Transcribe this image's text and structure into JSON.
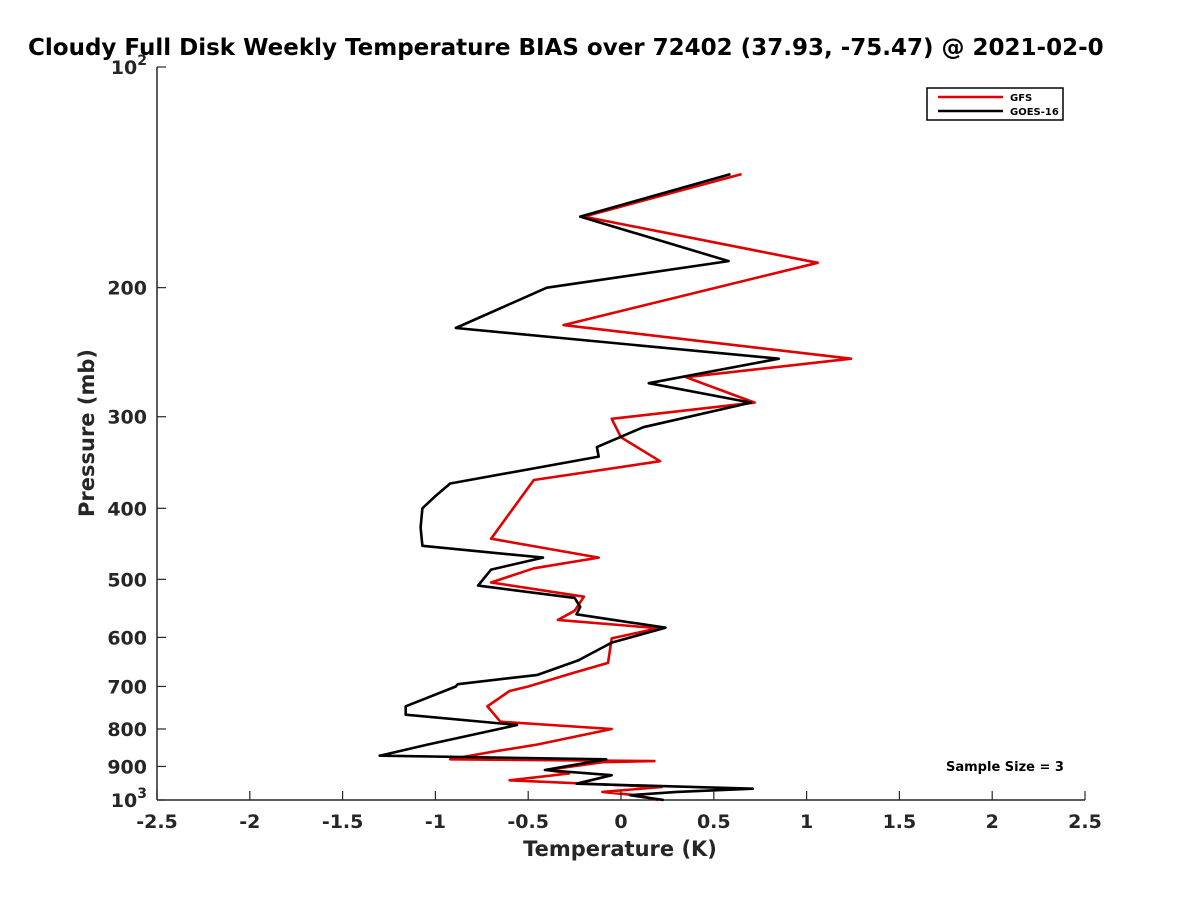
{
  "chart_data": {
    "type": "line",
    "title": "Cloudy Full Disk Weekly Temperature BIAS over 72402 (37.93, -75.47) @ 2021-02-0",
    "xlabel": "Temperature (K)",
    "ylabel": "Pressure (mb)",
    "xlim": [
      -2.5,
      2.5
    ],
    "ylim": [
      100,
      1000
    ],
    "y_scale": "log",
    "y_reversed": true,
    "grid": false,
    "legend_position": "top-right",
    "x_ticks": [
      -2.5,
      -2,
      -1.5,
      -1,
      -0.5,
      0,
      0.5,
      1,
      1.5,
      2,
      2.5
    ],
    "x_tick_labels": [
      "-2.5",
      "-2",
      "-1.5",
      "-1",
      "-0.5",
      "0",
      "0.5",
      "1",
      "1.5",
      "2",
      "2.5"
    ],
    "y_ticks": [
      100,
      200,
      300,
      400,
      500,
      600,
      700,
      800,
      900,
      1000
    ],
    "y_tick_labels": [
      {
        "base": "10",
        "exp": "2"
      },
      {
        "base": "200",
        "exp": ""
      },
      {
        "base": "300",
        "exp": ""
      },
      {
        "base": "400",
        "exp": ""
      },
      {
        "base": "500",
        "exp": ""
      },
      {
        "base": "600",
        "exp": ""
      },
      {
        "base": "700",
        "exp": ""
      },
      {
        "base": "800",
        "exp": ""
      },
      {
        "base": "900",
        "exp": ""
      },
      {
        "base": "10",
        "exp": "3"
      }
    ],
    "annotation": "Sample Size = 3",
    "series": [
      {
        "name": "GFS",
        "color": "#e00000",
        "points": [
          [
            0.65,
            140
          ],
          [
            -0.2,
            160
          ],
          [
            1.06,
            185
          ],
          [
            -0.31,
            225
          ],
          [
            1.24,
            250
          ],
          [
            0.35,
            265
          ],
          [
            0.72,
            287
          ],
          [
            -0.05,
            302
          ],
          [
            0.0,
            320
          ],
          [
            0.21,
            345
          ],
          [
            -0.47,
            366
          ],
          [
            -0.7,
            440
          ],
          [
            -0.12,
            467
          ],
          [
            -0.47,
            483
          ],
          [
            -0.7,
            505
          ],
          [
            -0.2,
            528
          ],
          [
            -0.25,
            552
          ],
          [
            -0.34,
            568
          ],
          [
            0.2,
            583
          ],
          [
            -0.05,
            602
          ],
          [
            -0.07,
            650
          ],
          [
            -0.25,
            670
          ],
          [
            -0.5,
            700
          ],
          [
            -0.6,
            710
          ],
          [
            -0.72,
            745
          ],
          [
            -0.65,
            782
          ],
          [
            -0.05,
            800
          ],
          [
            -0.45,
            840
          ],
          [
            -0.7,
            860
          ],
          [
            -0.92,
            880
          ],
          [
            0.18,
            885
          ],
          [
            -0.1,
            888
          ],
          [
            -0.4,
            910
          ],
          [
            -0.28,
            920
          ],
          [
            -0.6,
            940
          ],
          [
            0.22,
            960
          ],
          [
            -0.1,
            975
          ],
          [
            0.08,
            985
          ],
          [
            0.2,
            1000
          ]
        ]
      },
      {
        "name": "GOES-16",
        "color": "#000000",
        "points": [
          [
            0.59,
            140
          ],
          [
            -0.22,
            160
          ],
          [
            0.58,
            184
          ],
          [
            -0.4,
            200
          ],
          [
            -0.89,
            227
          ],
          [
            0.85,
            250
          ],
          [
            0.15,
            270
          ],
          [
            0.7,
            287
          ],
          [
            0.12,
            310
          ],
          [
            -0.13,
            330
          ],
          [
            -0.12,
            340
          ],
          [
            -0.92,
            370
          ],
          [
            -1.0,
            385
          ],
          [
            -1.07,
            400
          ],
          [
            -1.08,
            425
          ],
          [
            -1.07,
            450
          ],
          [
            -0.42,
            467
          ],
          [
            -0.7,
            485
          ],
          [
            -0.77,
            510
          ],
          [
            -0.25,
            530
          ],
          [
            -0.22,
            545
          ],
          [
            -0.24,
            558
          ],
          [
            0.24,
            582
          ],
          [
            -0.05,
            610
          ],
          [
            -0.23,
            645
          ],
          [
            -0.45,
            675
          ],
          [
            -0.88,
            695
          ],
          [
            -0.89,
            700
          ],
          [
            -1.16,
            745
          ],
          [
            -1.16,
            765
          ],
          [
            -0.56,
            790
          ],
          [
            -1.04,
            840
          ],
          [
            -1.3,
            870
          ],
          [
            -0.08,
            880
          ],
          [
            -0.41,
            910
          ],
          [
            -0.05,
            925
          ],
          [
            -0.24,
            950
          ],
          [
            0.71,
            965
          ],
          [
            0.3,
            975
          ],
          [
            0.05,
            985
          ],
          [
            0.23,
            1000
          ]
        ]
      }
    ]
  }
}
